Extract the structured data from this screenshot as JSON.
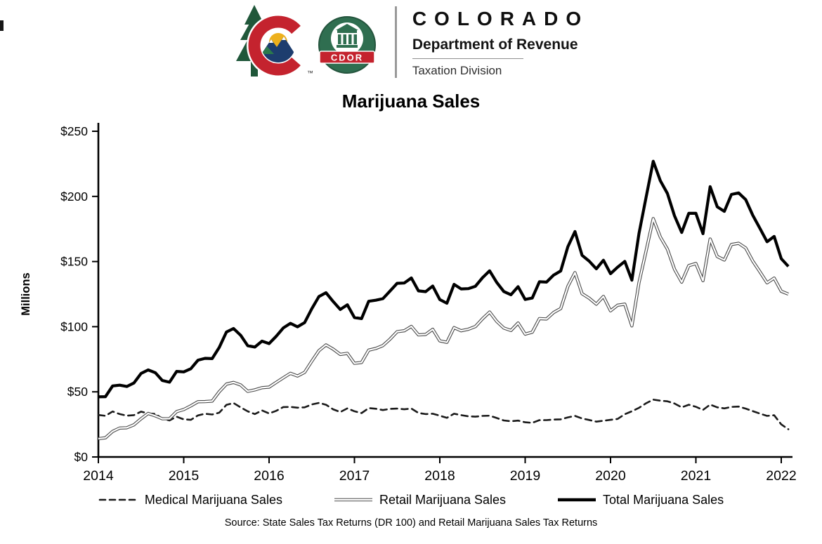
{
  "header": {
    "brand_name": "COLORADO",
    "department": "Department of Revenue",
    "division": "Taxation Division",
    "cdor_badge": "CDOR",
    "trademark": "™"
  },
  "chart_data": {
    "type": "line",
    "title": "Marijuana Sales",
    "ylabel": "Millions",
    "ylim": [
      0,
      250
    ],
    "yticks": [
      0,
      50,
      100,
      150,
      200,
      250
    ],
    "ytick_labels": [
      "$0",
      "$50",
      "$100",
      "$150",
      "$200",
      "$250"
    ],
    "xtick_labels": [
      "2014",
      "2015",
      "2016",
      "2017",
      "2018",
      "2019",
      "2020",
      "2021",
      "2022"
    ],
    "x_frequency": "monthly",
    "x_range": "Jan 2014 - Feb 2022",
    "grid": false,
    "legend_position": "bottom",
    "series": [
      {
        "name": "Medical Marijuana Sales",
        "style": "dashed",
        "color": "#1a1a1a",
        "values": [
          32.2,
          31.6,
          34.9,
          32.9,
          31.7,
          32.1,
          34.8,
          33.4,
          33.1,
          29.4,
          28.0,
          30.9,
          28.9,
          28.5,
          31.9,
          33.2,
          32.6,
          34.0,
          40.0,
          41.4,
          38.1,
          35.0,
          32.9,
          35.7,
          33.4,
          35.4,
          38.3,
          38.4,
          37.8,
          38.1,
          40.3,
          41.5,
          40.1,
          36.6,
          34.5,
          37.3,
          35.1,
          33.7,
          37.5,
          37.0,
          36.0,
          36.9,
          37.1,
          36.6,
          37.2,
          33.8,
          32.9,
          33.2,
          31.7,
          30.0,
          33.2,
          32.1,
          31.2,
          30.9,
          31.5,
          31.7,
          29.9,
          28.0,
          27.4,
          27.9,
          26.6,
          26.2,
          28.3,
          28.3,
          28.7,
          28.9,
          30.4,
          31.5,
          29.5,
          28.4,
          27.1,
          27.8,
          28.5,
          29.2,
          32.8,
          35.1,
          37.7,
          41.2,
          44.0,
          43.2,
          42.7,
          41.0,
          38.1,
          40.1,
          38.5,
          36.1,
          40.2,
          38.1,
          37.3,
          38.4,
          38.7,
          37.1,
          35.2,
          33.3,
          31.5,
          32.0,
          25.0,
          21.3
        ]
      },
      {
        "name": "Retail Marijuana Sales",
        "style": "double",
        "color": "#4a4a4a",
        "inner_color": "#ffffff",
        "values": [
          14.0,
          14.7,
          19.6,
          22.2,
          22.4,
          24.7,
          29.3,
          33.4,
          31.6,
          29.3,
          29.4,
          34.8,
          36.4,
          39.2,
          42.4,
          42.5,
          42.9,
          50.1,
          55.9,
          57.2,
          55.3,
          50.4,
          51.5,
          53.2,
          53.6,
          57.2,
          60.8,
          64.2,
          62.1,
          65.0,
          73.5,
          81.6,
          86.0,
          82.8,
          78.7,
          79.5,
          71.9,
          72.5,
          82.0,
          83.3,
          85.5,
          90.4,
          96.2,
          96.9,
          100.2,
          93.7,
          94.0,
          98.0,
          89.1,
          88.0,
          99.3,
          96.9,
          98.0,
          100.1,
          106.1,
          111.2,
          104.1,
          99.0,
          97.1,
          102.8,
          94.3,
          95.8,
          106.2,
          105.9,
          110.9,
          113.9,
          131.0,
          141.5,
          125.3,
          121.9,
          117.3,
          123.2,
          112.2,
          116.5,
          117.3,
          100.6,
          133.8,
          158.1,
          183.0,
          168.8,
          159.5,
          144.0,
          134.2,
          146.9,
          148.5,
          135.3,
          167.3,
          153.9,
          151.2,
          163.1,
          164.0,
          160.4,
          150.3,
          142.2,
          133.7,
          137.3,
          127.2,
          125.0
        ]
      },
      {
        "name": "Total Marijuana Sales",
        "style": "solid-thick",
        "color": "#000000",
        "values": [
          46.2,
          46.3,
          54.5,
          55.1,
          54.1,
          56.8,
          64.1,
          66.8,
          64.7,
          58.7,
          57.4,
          65.7,
          65.3,
          67.7,
          74.3,
          75.7,
          75.5,
          84.1,
          95.9,
          98.6,
          93.4,
          85.4,
          84.4,
          88.9,
          87.0,
          92.6,
          99.1,
          102.6,
          99.9,
          103.1,
          113.8,
          123.1,
          126.1,
          119.4,
          113.2,
          116.8,
          107.0,
          106.2,
          119.5,
          120.3,
          121.5,
          127.3,
          133.3,
          133.5,
          137.4,
          127.5,
          126.9,
          131.2,
          120.8,
          118.0,
          132.5,
          129.0,
          129.2,
          131.0,
          137.6,
          142.9,
          134.0,
          127.0,
          124.5,
          130.7,
          120.9,
          122.0,
          134.5,
          134.2,
          139.6,
          142.8,
          161.4,
          173.0,
          154.8,
          150.3,
          144.4,
          151.0,
          140.7,
          145.7,
          150.1,
          135.7,
          171.5,
          199.3,
          227.0,
          212.0,
          202.2,
          185.0,
          172.3,
          187.0,
          187.0,
          171.4,
          207.5,
          192.0,
          188.5,
          201.5,
          202.7,
          197.5,
          185.5,
          175.5,
          165.2,
          169.3,
          152.2,
          146.3
        ]
      }
    ],
    "source": "Source: State Sales Tax Returns (DR 100) and Retail Marijuana  Sales Tax Returns"
  }
}
